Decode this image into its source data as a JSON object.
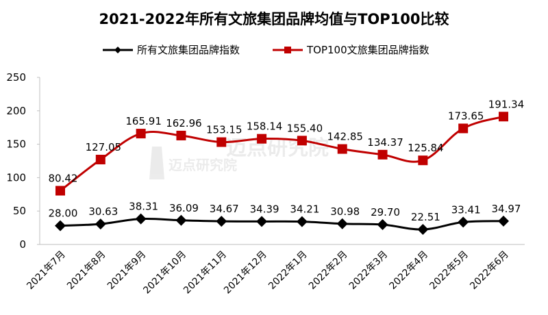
{
  "chart_data": {
    "type": "line",
    "title": "2021-2022年所有文旅集团品牌均值与TOP100比较",
    "categories": [
      "2021年7月",
      "2021年8月",
      "2021年9月",
      "2021年10月",
      "2021年11月",
      "2021年12月",
      "2022年1月",
      "2022年2月",
      "2022年3月",
      "2022年4月",
      "2022年5月",
      "2022年6月"
    ],
    "series": [
      {
        "name": "所有文旅集团品牌指数",
        "color": "#000000",
        "marker": "diamond",
        "values": [
          28.0,
          30.63,
          38.31,
          36.09,
          34.67,
          34.39,
          34.21,
          30.98,
          29.7,
          22.51,
          33.41,
          34.97
        ]
      },
      {
        "name": "TOP100文旅集团品牌指数",
        "color": "#c00000",
        "marker": "square",
        "values": [
          80.42,
          127.05,
          165.91,
          162.96,
          153.15,
          158.14,
          155.4,
          142.85,
          134.37,
          125.84,
          173.65,
          191.34
        ]
      }
    ],
    "ylim": [
      0,
      250
    ],
    "yticks": [
      0,
      50,
      100,
      150,
      200,
      250
    ],
    "xlabel": "",
    "ylabel": "",
    "grid": false,
    "legend": "top"
  },
  "watermark": {
    "left_text": "迈点研究院",
    "right_text": "迈点研究院"
  }
}
